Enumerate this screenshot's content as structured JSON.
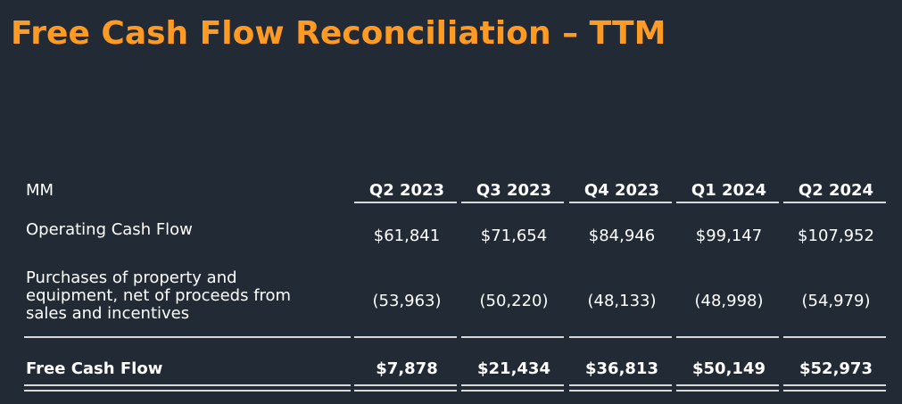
{
  "title": "Free Cash Flow Reconciliation – TTM",
  "table": {
    "unit_label": "MM",
    "columns": [
      "Q2 2023",
      "Q3 2023",
      "Q4 2023",
      "Q1 2024",
      "Q2 2024"
    ],
    "rows": [
      {
        "label": "Operating Cash Flow",
        "values": [
          "$61,841",
          "$71,654",
          "$84,946",
          "$99,147",
          "$107,952"
        ]
      },
      {
        "label": "Purchases of property and equipment, net of proceeds from sales and incentives",
        "values": [
          "(53,963)",
          "(50,220)",
          "(48,133)",
          "(48,998)",
          "(54,979)"
        ]
      },
      {
        "label": "Free Cash Flow",
        "values": [
          "$7,878",
          "$21,434",
          "$36,813",
          "$50,149",
          "$52,973"
        ]
      }
    ]
  },
  "colors": {
    "background": "#222a35",
    "title": "#ff9a22",
    "text": "#ffffff",
    "rule": "#d9d9d9"
  }
}
